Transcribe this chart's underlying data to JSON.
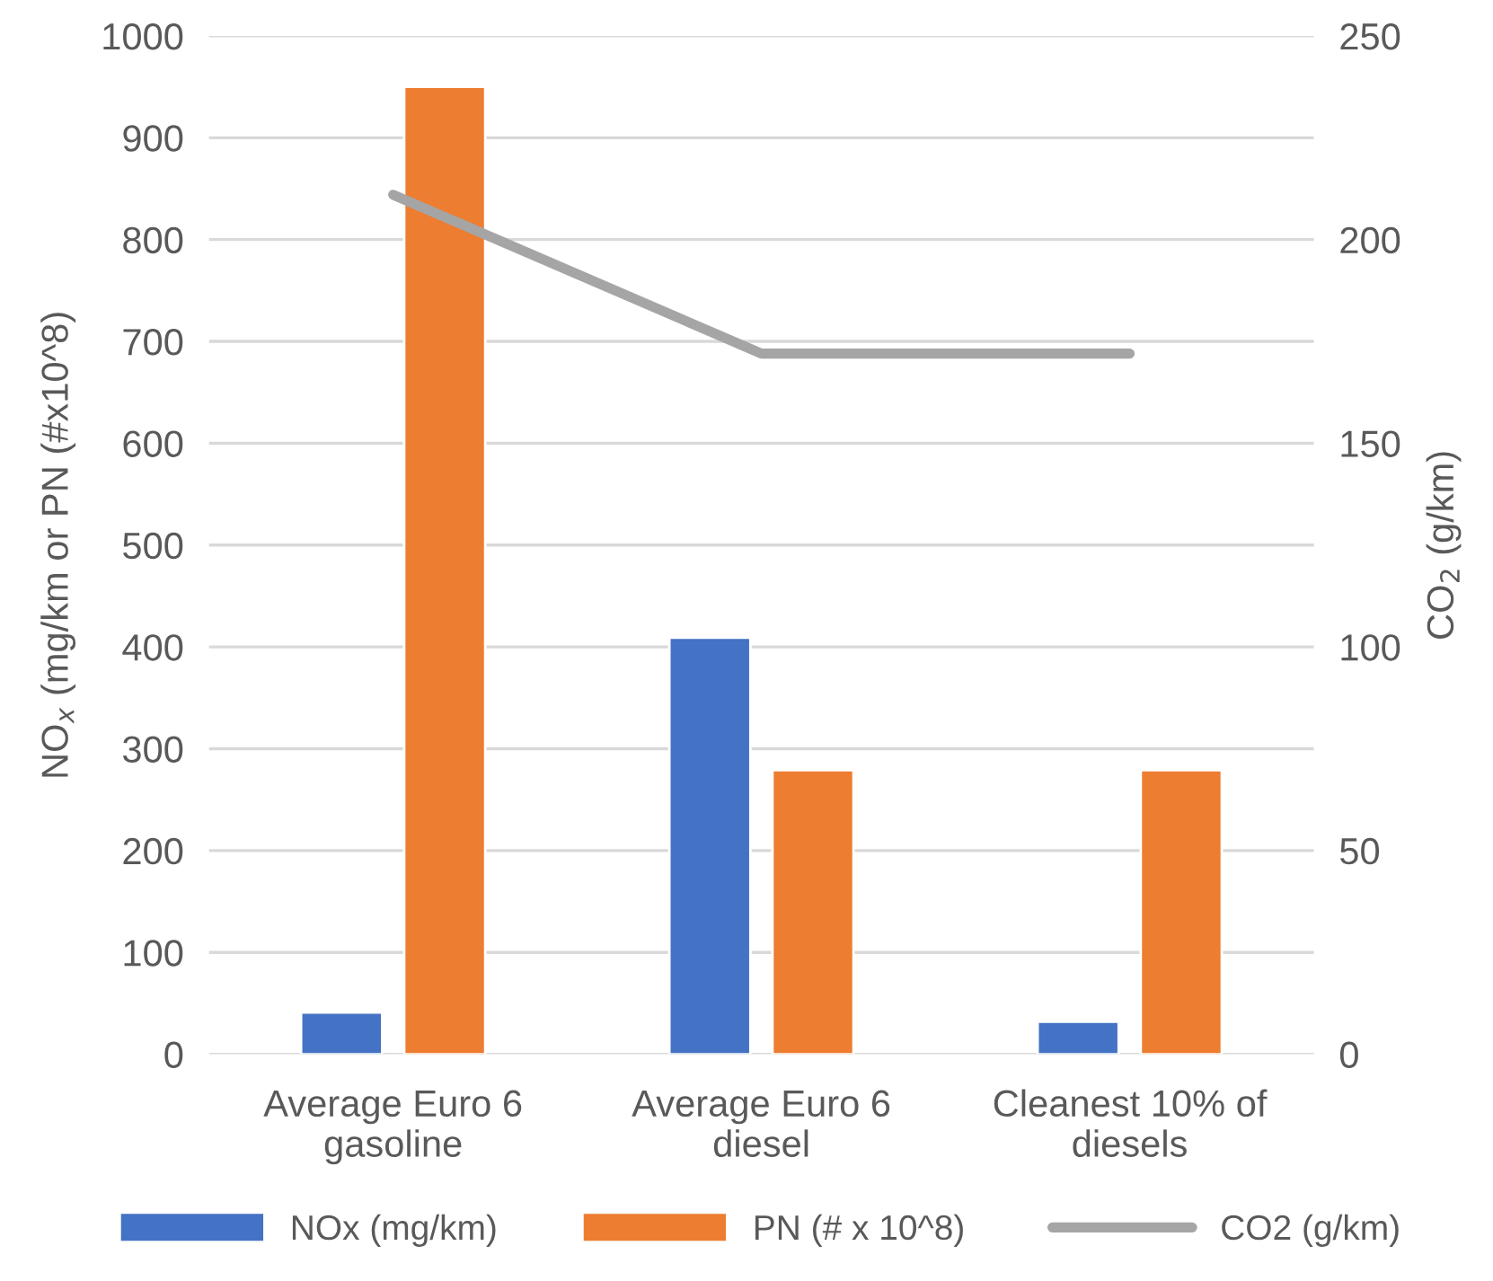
{
  "chart_data": {
    "type": "bar",
    "categories": [
      "Average Euro 6\ngasoline",
      "Average Euro 6\ndiesel",
      "Cleanest 10% of\ndiesels"
    ],
    "series": [
      {
        "name": "NOx (mg/km)",
        "color": "#4472c4",
        "values": [
          41,
          409,
          32
        ]
      },
      {
        "name": "PN (# x 10^8)",
        "color": "#ed7d31",
        "values": [
          950,
          279,
          279
        ]
      },
      {
        "name": "CO2 (g/km)",
        "color": "#a5a5a5",
        "type": "line",
        "axis": "y2",
        "values": [
          211,
          172,
          172
        ]
      }
    ],
    "ylabel": "NO$_{x}$ (mg/km or PN (#x10^8)",
    "y2label": "CO$_{2}$ (g/km)",
    "ylim": [
      0,
      1000
    ],
    "yticks": [
      0,
      100,
      200,
      300,
      400,
      500,
      600,
      700,
      800,
      900,
      1000
    ],
    "y2lim": [
      0,
      250
    ],
    "y2ticks": [
      0,
      50,
      100,
      150,
      200,
      250
    ],
    "grid": "y",
    "legend": "bottom",
    "marker": "none",
    "line_style": "solid"
  }
}
